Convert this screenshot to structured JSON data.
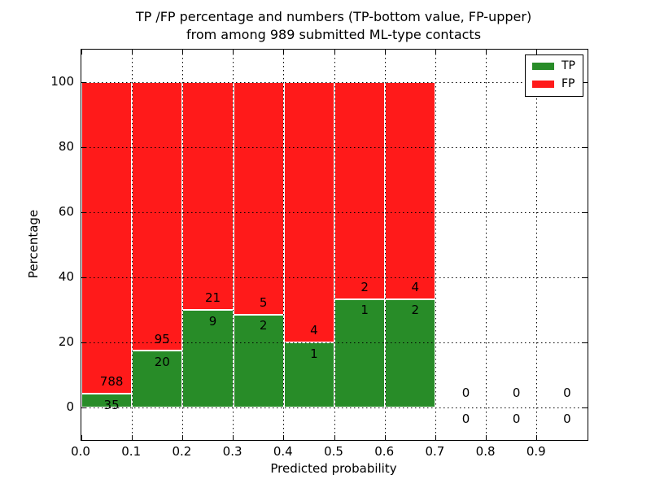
{
  "chart_data": {
    "type": "bar",
    "stacked": true,
    "title_line1": "TP /FP percentage and numbers (TP-bottom value, FP-upper)",
    "title_line2": "from among 989 submitted ML-type contacts",
    "xlabel": "Predicted probability",
    "ylabel": "Percentage",
    "x_tick_labels": [
      "0.0",
      "0.1",
      "0.2",
      "0.3",
      "0.4",
      "0.5",
      "0.6",
      "0.7",
      "0.8",
      "0.9"
    ],
    "y_ticks": [
      0,
      20,
      40,
      60,
      80,
      100
    ],
    "xlim": [
      0.0,
      1.0
    ],
    "ylim": [
      -10,
      110
    ],
    "grid": "dotted",
    "legend_position": "upper right",
    "total_submitted": 989,
    "series": [
      {
        "name": "TP",
        "color": "#288c28"
      },
      {
        "name": "FP",
        "color": "#ff1a1a"
      }
    ],
    "bins": [
      {
        "range": [
          0.0,
          0.1
        ],
        "tp": 35,
        "fp": 788
      },
      {
        "range": [
          0.1,
          0.2
        ],
        "tp": 20,
        "fp": 95
      },
      {
        "range": [
          0.2,
          0.3
        ],
        "tp": 9,
        "fp": 21
      },
      {
        "range": [
          0.3,
          0.4
        ],
        "tp": 2,
        "fp": 5
      },
      {
        "range": [
          0.4,
          0.5
        ],
        "tp": 1,
        "fp": 4
      },
      {
        "range": [
          0.5,
          0.6
        ],
        "tp": 1,
        "fp": 2
      },
      {
        "range": [
          0.6,
          0.7
        ],
        "tp": 2,
        "fp": 4
      },
      {
        "range": [
          0.7,
          0.8
        ],
        "tp": 0,
        "fp": 0
      },
      {
        "range": [
          0.8,
          0.9
        ],
        "tp": 0,
        "fp": 0
      },
      {
        "range": [
          0.9,
          1.0
        ],
        "tp": 0,
        "fp": 0
      }
    ]
  }
}
